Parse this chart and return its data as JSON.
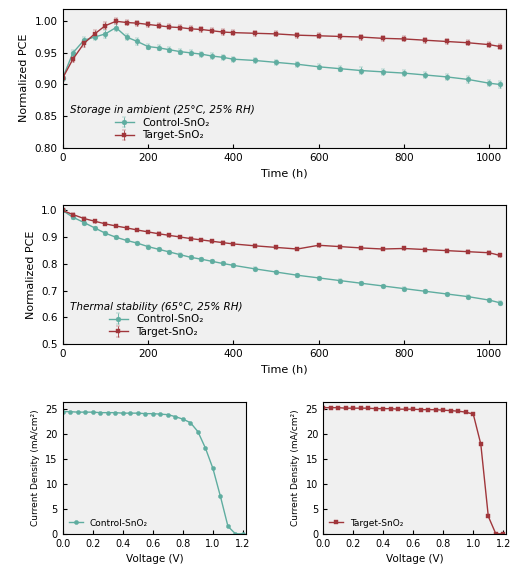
{
  "storage_time": [
    0,
    24,
    50,
    75,
    100,
    125,
    150,
    175,
    200,
    225,
    250,
    275,
    300,
    325,
    350,
    375,
    400,
    450,
    500,
    550,
    600,
    650,
    700,
    750,
    800,
    850,
    900,
    950,
    1000,
    1025
  ],
  "storage_control": [
    0.91,
    0.95,
    0.97,
    0.975,
    0.98,
    0.99,
    0.975,
    0.968,
    0.96,
    0.958,
    0.955,
    0.952,
    0.95,
    0.948,
    0.945,
    0.943,
    0.94,
    0.938,
    0.935,
    0.932,
    0.928,
    0.925,
    0.922,
    0.92,
    0.918,
    0.915,
    0.912,
    0.908,
    0.902,
    0.9
  ],
  "storage_target": [
    0.91,
    0.94,
    0.965,
    0.98,
    0.993,
    1.0,
    0.998,
    0.997,
    0.995,
    0.993,
    0.991,
    0.99,
    0.988,
    0.987,
    0.985,
    0.983,
    0.982,
    0.981,
    0.98,
    0.978,
    0.977,
    0.976,
    0.975,
    0.973,
    0.972,
    0.97,
    0.968,
    0.966,
    0.963,
    0.96
  ],
  "storage_err_ctrl": [
    0.005,
    0.005,
    0.005,
    0.005,
    0.006,
    0.005,
    0.005,
    0.005,
    0.004,
    0.004,
    0.004,
    0.004,
    0.004,
    0.004,
    0.004,
    0.004,
    0.004,
    0.004,
    0.004,
    0.004,
    0.004,
    0.004,
    0.005,
    0.005,
    0.005,
    0.005,
    0.005,
    0.005,
    0.005,
    0.005
  ],
  "storage_err_tgt": [
    0.005,
    0.005,
    0.005,
    0.006,
    0.006,
    0.005,
    0.004,
    0.004,
    0.004,
    0.004,
    0.004,
    0.004,
    0.004,
    0.004,
    0.004,
    0.004,
    0.004,
    0.004,
    0.004,
    0.004,
    0.004,
    0.004,
    0.004,
    0.004,
    0.004,
    0.004,
    0.004,
    0.004,
    0.004,
    0.004
  ],
  "thermal_time": [
    0,
    24,
    50,
    75,
    100,
    125,
    150,
    175,
    200,
    225,
    250,
    275,
    300,
    325,
    350,
    375,
    400,
    450,
    500,
    550,
    600,
    650,
    700,
    750,
    800,
    850,
    900,
    950,
    1000,
    1025
  ],
  "thermal_control": [
    1.0,
    0.975,
    0.955,
    0.935,
    0.915,
    0.9,
    0.888,
    0.878,
    0.865,
    0.855,
    0.845,
    0.835,
    0.825,
    0.818,
    0.81,
    0.802,
    0.795,
    0.782,
    0.77,
    0.758,
    0.748,
    0.738,
    0.728,
    0.718,
    0.708,
    0.698,
    0.688,
    0.678,
    0.665,
    0.655
  ],
  "thermal_target": [
    1.0,
    0.985,
    0.97,
    0.96,
    0.95,
    0.942,
    0.935,
    0.927,
    0.92,
    0.913,
    0.907,
    0.901,
    0.895,
    0.89,
    0.885,
    0.88,
    0.875,
    0.868,
    0.862,
    0.856,
    0.87,
    0.865,
    0.86,
    0.856,
    0.858,
    0.854,
    0.85,
    0.846,
    0.842,
    0.832
  ],
  "thermal_err_ctrl": [
    0.005,
    0.005,
    0.005,
    0.005,
    0.005,
    0.005,
    0.005,
    0.005,
    0.005,
    0.005,
    0.005,
    0.005,
    0.005,
    0.005,
    0.005,
    0.005,
    0.005,
    0.005,
    0.005,
    0.005,
    0.005,
    0.005,
    0.005,
    0.005,
    0.005,
    0.005,
    0.005,
    0.005,
    0.005,
    0.005
  ],
  "thermal_err_tgt": [
    0.005,
    0.005,
    0.005,
    0.005,
    0.005,
    0.005,
    0.005,
    0.005,
    0.005,
    0.005,
    0.005,
    0.005,
    0.005,
    0.005,
    0.005,
    0.005,
    0.005,
    0.005,
    0.005,
    0.005,
    0.005,
    0.005,
    0.005,
    0.005,
    0.005,
    0.005,
    0.005,
    0.005,
    0.005,
    0.005
  ],
  "jv_control_v": [
    0.0,
    0.05,
    0.1,
    0.15,
    0.2,
    0.25,
    0.3,
    0.35,
    0.4,
    0.45,
    0.5,
    0.55,
    0.6,
    0.65,
    0.7,
    0.75,
    0.8,
    0.85,
    0.9,
    0.95,
    1.0,
    1.05,
    1.1,
    1.15,
    1.2
  ],
  "jv_control_j": [
    24.5,
    24.5,
    24.4,
    24.4,
    24.4,
    24.3,
    24.3,
    24.3,
    24.2,
    24.2,
    24.2,
    24.1,
    24.1,
    24.0,
    23.9,
    23.5,
    23.0,
    22.3,
    20.5,
    17.2,
    13.1,
    7.5,
    1.5,
    0.0,
    0.0
  ],
  "jv_target_v": [
    0.0,
    0.05,
    0.1,
    0.15,
    0.2,
    0.25,
    0.3,
    0.35,
    0.4,
    0.45,
    0.5,
    0.55,
    0.6,
    0.65,
    0.7,
    0.75,
    0.8,
    0.85,
    0.9,
    0.95,
    1.0,
    1.05,
    1.1,
    1.15,
    1.2
  ],
  "jv_target_j": [
    25.3,
    25.3,
    25.3,
    25.2,
    25.2,
    25.2,
    25.2,
    25.1,
    25.1,
    25.1,
    25.0,
    25.0,
    25.0,
    24.9,
    24.9,
    24.9,
    24.8,
    24.7,
    24.6,
    24.4,
    24.0,
    18.0,
    3.5,
    0.0,
    0.0
  ],
  "color_control": "#5FADA0",
  "color_target": "#A0363B",
  "storage_ylim": [
    0.8,
    1.02
  ],
  "storage_yticks": [
    0.8,
    0.85,
    0.9,
    0.95,
    1.0
  ],
  "thermal_ylim": [
    0.5,
    1.02
  ],
  "thermal_yticks": [
    0.5,
    0.6,
    0.7,
    0.8,
    0.9,
    1.0
  ],
  "time_xlim": [
    0,
    1040
  ],
  "time_xticks": [
    0,
    200,
    400,
    600,
    800,
    1000
  ],
  "jv_xlim": [
    0.0,
    1.22
  ],
  "jv_xticks": [
    0.0,
    0.2,
    0.4,
    0.6,
    0.8,
    1.0,
    1.2
  ],
  "jv_ylim": [
    0,
    26.5
  ],
  "jv_yticks": [
    0,
    5,
    10,
    15,
    20,
    25
  ],
  "storage_label": "Storage in ambient (25°C, 25% RH)",
  "thermal_label": "Thermal stability (65°C, 25% RH)",
  "control_legend": "Control-SnO₂",
  "target_legend": "Target-SnO₂",
  "ylabel_pce": "Normalized PCE",
  "xlabel_time": "Time (h)",
  "ylabel_jv": "Current Density (mA/cm²)",
  "xlabel_jv": "Voltage (V)",
  "marker_size": 3.5,
  "linewidth": 1.0,
  "bg_color": "#F0F0F0"
}
